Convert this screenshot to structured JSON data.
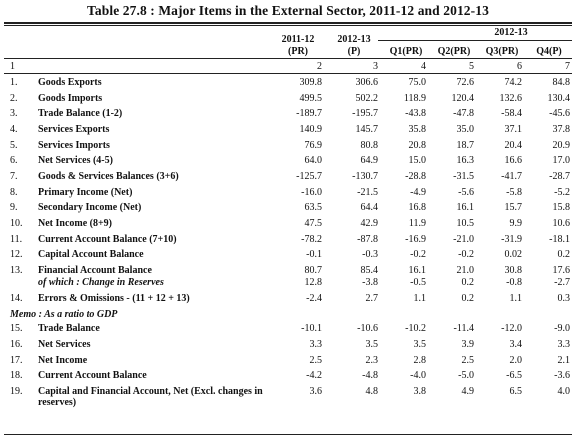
{
  "title": "Table 27.8 : Major Items in the External Sector, 2011-12 and 2012-13",
  "group_header": "2012-13",
  "columns": [
    {
      "line1": "2011-12",
      "line2": "(PR)",
      "num": "2"
    },
    {
      "line1": "2012-13",
      "line2": "(P)",
      "num": "3"
    },
    {
      "line1": "",
      "line2": "Q1(PR)",
      "num": "4"
    },
    {
      "line1": "",
      "line2": "Q2(PR)",
      "num": "5"
    },
    {
      "line1": "",
      "line2": "Q3(PR)",
      "num": "6"
    },
    {
      "line1": "",
      "line2": "Q4(P)",
      "num": "7"
    }
  ],
  "col1_num": "1",
  "rows": [
    {
      "sn": "1.",
      "label": "Goods Exports",
      "v": [
        "309.8",
        "306.6",
        "75.0",
        "72.6",
        "74.2",
        "84.8"
      ]
    },
    {
      "sn": "2.",
      "label": "Goods Imports",
      "v": [
        "499.5",
        "502.2",
        "118.9",
        "120.4",
        "132.6",
        "130.4"
      ]
    },
    {
      "sn": "3.",
      "label": "Trade Balance (1-2)",
      "v": [
        "-189.7",
        "-195.7",
        "-43.8",
        "-47.8",
        "-58.4",
        "-45.6"
      ]
    },
    {
      "sn": "4.",
      "label": "Services Exports",
      "v": [
        "140.9",
        "145.7",
        "35.8",
        "35.0",
        "37.1",
        "37.8"
      ]
    },
    {
      "sn": "5.",
      "label": "Services Imports",
      "v": [
        "76.9",
        "80.8",
        "20.8",
        "18.7",
        "20.4",
        "20.9"
      ]
    },
    {
      "sn": "6.",
      "label": "Net Services (4-5)",
      "v": [
        "64.0",
        "64.9",
        "15.0",
        "16.3",
        "16.6",
        "17.0"
      ]
    },
    {
      "sn": "7.",
      "label": "Goods & Services Balances (3+6)",
      "v": [
        "-125.7",
        "-130.7",
        "-28.8",
        "-31.5",
        "-41.7",
        "-28.7"
      ]
    },
    {
      "sn": "8.",
      "label": "Primary Income (Net)",
      "v": [
        "-16.0",
        "-21.5",
        "-4.9",
        "-5.6",
        "-5.8",
        "-5.2"
      ]
    },
    {
      "sn": "9.",
      "label": "Secondary Income (Net)",
      "v": [
        "63.5",
        "64.4",
        "16.8",
        "16.1",
        "15.7",
        "15.8"
      ]
    },
    {
      "sn": "10.",
      "label": "Net Income (8+9)",
      "v": [
        "47.5",
        "42.9",
        "11.9",
        "10.5",
        "9.9",
        "10.6"
      ]
    },
    {
      "sn": "11.",
      "label": "Current Account Balance (7+10)",
      "v": [
        "-78.2",
        "-87.8",
        "-16.9",
        "-21.0",
        "-31.9",
        "-18.1"
      ]
    },
    {
      "sn": "12.",
      "label": "Capital Account Balance",
      "v": [
        "-0.1",
        "-0.3",
        "-0.2",
        "-0.2",
        "0.02",
        "0.2"
      ]
    },
    {
      "sn": "13.",
      "label": "Financial Account Balance",
      "v": [
        "80.7",
        "85.4",
        "16.1",
        "21.0",
        "30.8",
        "17.6"
      ]
    },
    {
      "sn": "",
      "label": "of which : Change in Reserves",
      "italic_prefix": "of which",
      "v": [
        "12.8",
        "-3.8",
        "-0.5",
        "0.2",
        "-0.8",
        "-2.7"
      ]
    },
    {
      "sn": "14.",
      "label": "Errors & Omissions - (11 + 12 + 13)",
      "v": [
        "-2.4",
        "2.7",
        "1.1",
        "0.2",
        "1.1",
        "0.3"
      ]
    },
    {
      "sn": "",
      "label": "Memo : As a ratio to GDP",
      "memo": true,
      "v": [
        "",
        "",
        "",
        "",
        "",
        ""
      ]
    },
    {
      "sn": "15.",
      "label": "Trade Balance",
      "v": [
        "-10.1",
        "-10.6",
        "-10.2",
        "-11.4",
        "-12.0",
        "-9.0"
      ]
    },
    {
      "sn": "16.",
      "label": "Net Services",
      "v": [
        "3.3",
        "3.5",
        "3.5",
        "3.9",
        "3.4",
        "3.3"
      ]
    },
    {
      "sn": "17.",
      "label": "Net Income",
      "v": [
        "2.5",
        "2.3",
        "2.8",
        "2.5",
        "2.0",
        "2.1"
      ]
    },
    {
      "sn": "18.",
      "label": "Current Account Balance",
      "v": [
        "-4.2",
        "-4.8",
        "-4.0",
        "-5.0",
        "-6.5",
        "-3.6"
      ]
    },
    {
      "sn": "19.",
      "label": "Capital and Financial Account, Net (Excl. changes in reserves)",
      "v": [
        "3.6",
        "4.8",
        "3.8",
        "4.9",
        "6.5",
        "4.0"
      ]
    }
  ]
}
